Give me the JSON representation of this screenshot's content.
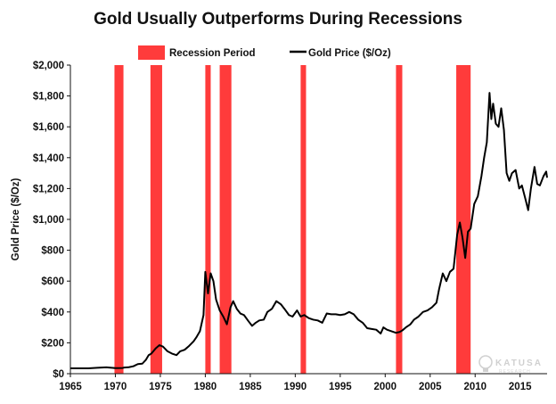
{
  "chart_data": {
    "type": "line",
    "title": "Gold Usually Outperforms During Recessions",
    "ylabel": "Gold Price ($/Oz)",
    "xlabel": "",
    "xlim": [
      1965,
      2018
    ],
    "ylim": [
      0,
      2000
    ],
    "x_ticks": [
      1965,
      1970,
      1975,
      1980,
      1985,
      1990,
      1995,
      2000,
      2005,
      2010,
      2015
    ],
    "y_ticks": [
      0,
      200,
      400,
      600,
      800,
      1000,
      1200,
      1400,
      1600,
      1800,
      2000
    ],
    "y_tick_labels": [
      "$0",
      "$200",
      "$400",
      "$600",
      "$800",
      "$1,000",
      "$1,200",
      "$1,400",
      "$1,600",
      "$1,800",
      "$2,000"
    ],
    "grid": false,
    "legend": {
      "placement": "top-center",
      "entries": [
        {
          "label": "Recession Period",
          "type": "band",
          "color": "#ff3b3b"
        },
        {
          "label": "Gold Price ($/Oz)",
          "type": "line",
          "color": "#000000"
        }
      ]
    },
    "recessions": [
      {
        "start": 1969.9,
        "end": 1970.9
      },
      {
        "start": 1973.9,
        "end": 1975.2
      },
      {
        "start": 1980.0,
        "end": 1980.6
      },
      {
        "start": 1981.6,
        "end": 1982.9
      },
      {
        "start": 1990.6,
        "end": 1991.2
      },
      {
        "start": 2001.2,
        "end": 2001.9
      },
      {
        "start": 2007.9,
        "end": 2009.5
      }
    ],
    "series": [
      {
        "name": "Gold Price ($/Oz)",
        "color": "#000000",
        "points": [
          [
            1965,
            35
          ],
          [
            1966,
            35
          ],
          [
            1967,
            35
          ],
          [
            1968,
            38
          ],
          [
            1969,
            41
          ],
          [
            1970,
            36
          ],
          [
            1970.8,
            37
          ],
          [
            1971,
            40
          ],
          [
            1971.5,
            42
          ],
          [
            1972,
            48
          ],
          [
            1972.5,
            62
          ],
          [
            1973,
            65
          ],
          [
            1973.4,
            90
          ],
          [
            1973.7,
            120
          ],
          [
            1974,
            130
          ],
          [
            1974.5,
            165
          ],
          [
            1974.9,
            185
          ],
          [
            1975.3,
            175
          ],
          [
            1975.8,
            145
          ],
          [
            1976.3,
            130
          ],
          [
            1976.8,
            120
          ],
          [
            1977.2,
            145
          ],
          [
            1977.7,
            155
          ],
          [
            1978.2,
            180
          ],
          [
            1978.7,
            210
          ],
          [
            1979,
            235
          ],
          [
            1979.4,
            275
          ],
          [
            1979.8,
            380
          ],
          [
            1980.0,
            660
          ],
          [
            1980.3,
            520
          ],
          [
            1980.6,
            650
          ],
          [
            1980.9,
            600
          ],
          [
            1981.2,
            480
          ],
          [
            1981.6,
            410
          ],
          [
            1982.0,
            370
          ],
          [
            1982.4,
            320
          ],
          [
            1982.8,
            430
          ],
          [
            1983.1,
            470
          ],
          [
            1983.5,
            420
          ],
          [
            1983.9,
            390
          ],
          [
            1984.3,
            380
          ],
          [
            1984.8,
            340
          ],
          [
            1985.2,
            310
          ],
          [
            1985.6,
            330
          ],
          [
            1986.0,
            345
          ],
          [
            1986.5,
            350
          ],
          [
            1986.9,
            400
          ],
          [
            1987.4,
            420
          ],
          [
            1987.9,
            470
          ],
          [
            1988.4,
            450
          ],
          [
            1988.8,
            420
          ],
          [
            1989.3,
            380
          ],
          [
            1989.7,
            370
          ],
          [
            1990.2,
            410
          ],
          [
            1990.6,
            370
          ],
          [
            1991.0,
            380
          ],
          [
            1991.5,
            360
          ],
          [
            1992.0,
            350
          ],
          [
            1992.5,
            345
          ],
          [
            1993.0,
            330
          ],
          [
            1993.5,
            390
          ],
          [
            1994.0,
            385
          ],
          [
            1994.5,
            385
          ],
          [
            1995.0,
            380
          ],
          [
            1995.5,
            385
          ],
          [
            1996.0,
            400
          ],
          [
            1996.5,
            385
          ],
          [
            1997.0,
            350
          ],
          [
            1997.5,
            330
          ],
          [
            1998.0,
            295
          ],
          [
            1998.5,
            290
          ],
          [
            1999.0,
            285
          ],
          [
            1999.5,
            260
          ],
          [
            1999.8,
            300
          ],
          [
            2000.2,
            285
          ],
          [
            2000.7,
            275
          ],
          [
            2001.2,
            265
          ],
          [
            2001.6,
            270
          ],
          [
            2001.9,
            280
          ],
          [
            2002.3,
            300
          ],
          [
            2002.8,
            320
          ],
          [
            2003.2,
            350
          ],
          [
            2003.7,
            370
          ],
          [
            2004.2,
            400
          ],
          [
            2004.7,
            410
          ],
          [
            2005.2,
            430
          ],
          [
            2005.7,
            460
          ],
          [
            2006.0,
            550
          ],
          [
            2006.4,
            650
          ],
          [
            2006.8,
            600
          ],
          [
            2007.2,
            660
          ],
          [
            2007.6,
            680
          ],
          [
            2008.0,
            900
          ],
          [
            2008.3,
            980
          ],
          [
            2008.6,
            880
          ],
          [
            2008.9,
            750
          ],
          [
            2009.2,
            920
          ],
          [
            2009.5,
            940
          ],
          [
            2009.9,
            1100
          ],
          [
            2010.3,
            1150
          ],
          [
            2010.7,
            1280
          ],
          [
            2011.0,
            1400
          ],
          [
            2011.3,
            1500
          ],
          [
            2011.6,
            1820
          ],
          [
            2011.8,
            1650
          ],
          [
            2012.0,
            1750
          ],
          [
            2012.3,
            1620
          ],
          [
            2012.6,
            1600
          ],
          [
            2012.9,
            1720
          ],
          [
            2013.2,
            1580
          ],
          [
            2013.5,
            1300
          ],
          [
            2013.8,
            1250
          ],
          [
            2014.1,
            1300
          ],
          [
            2014.5,
            1320
          ],
          [
            2014.9,
            1200
          ],
          [
            2015.2,
            1220
          ],
          [
            2015.6,
            1130
          ],
          [
            2015.9,
            1060
          ],
          [
            2016.2,
            1200
          ],
          [
            2016.6,
            1340
          ],
          [
            2016.9,
            1230
          ],
          [
            2017.2,
            1220
          ],
          [
            2017.6,
            1280
          ],
          [
            2017.9,
            1310
          ],
          [
            2018.0,
            1270
          ]
        ]
      }
    ]
  },
  "watermark": {
    "brand": "KATUSA",
    "sub": "RESEARCH"
  }
}
